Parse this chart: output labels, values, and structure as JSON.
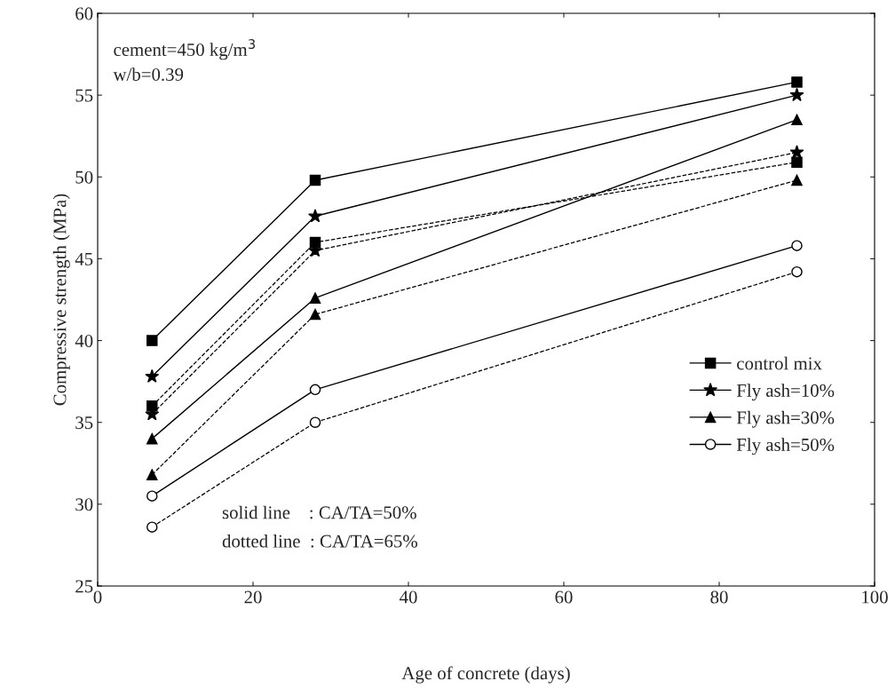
{
  "chart_data": {
    "type": "line",
    "xlabel": "Age of concrete (days)",
    "ylabel": "Compressive strength (MPa)",
    "x": [
      7,
      28,
      90
    ],
    "series": [
      {
        "name": "control mix",
        "color": "#000000",
        "marker": "square",
        "line_style": "solid",
        "values": [
          40,
          49.8,
          55.8
        ]
      },
      {
        "name": "Fly ash=10%",
        "color": "#000000",
        "marker": "star",
        "line_style": "solid",
        "values": [
          37.8,
          47.6,
          55
        ]
      },
      {
        "name": "Fly ash=30%",
        "color": "#000000",
        "marker": "triangle",
        "line_style": "solid",
        "values": [
          34,
          42.6,
          53.5
        ]
      },
      {
        "name": "Fly ash=50%",
        "color": "#000000",
        "marker": "circle",
        "line_style": "solid",
        "values": [
          30.5,
          37,
          45.8
        ]
      },
      {
        "color": "#000000",
        "marker": "square",
        "line_style": "dashed",
        "values": [
          36,
          46,
          50.9
        ]
      },
      {
        "color": "#000000",
        "marker": "star",
        "line_style": "dashed",
        "values": [
          35.5,
          45.5,
          51.5
        ]
      },
      {
        "color": "#000000",
        "marker": "triangle",
        "line_style": "dashed",
        "values": [
          31.8,
          41.6,
          49.8
        ]
      },
      {
        "color": "#000000",
        "marker": "circle",
        "line_style": "dashed",
        "values": [
          28.6,
          35,
          44.2
        ]
      }
    ],
    "xlim": [
      0,
      100
    ],
    "xticks": [
      0,
      20,
      40,
      60,
      80,
      100
    ],
    "ylim": [
      25,
      60
    ],
    "yticks": [
      25,
      30,
      35,
      40,
      45,
      50,
      55,
      60
    ],
    "grid": false,
    "legend": "bottom right",
    "annotations": [
      {
        "text": "cement=450 kg/m$^{3}$"
      },
      {
        "text": "w/b=0.39"
      },
      {
        "text": "solid line    : CA/TA=50%"
      },
      {
        "text": "dotted line  : CA/TA=65%"
      }
    ]
  }
}
